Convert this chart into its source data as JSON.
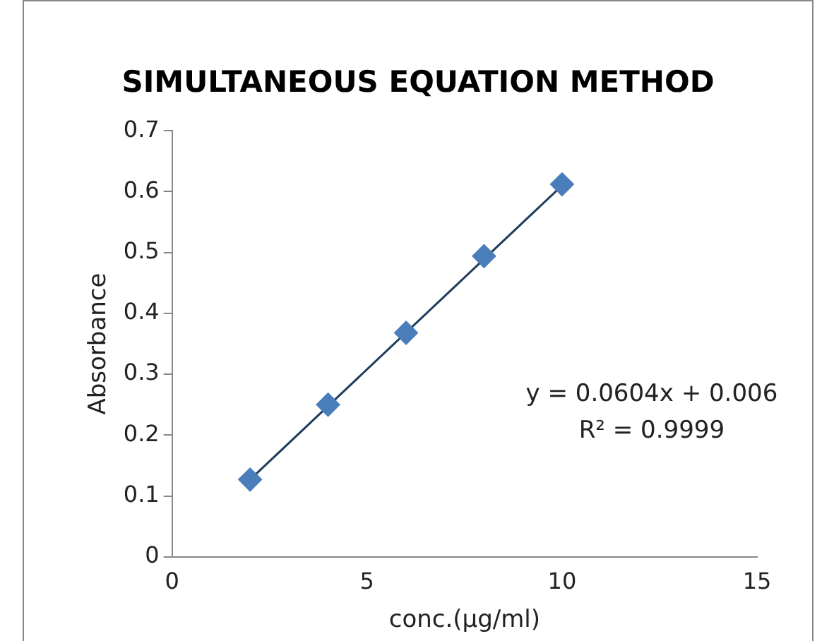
{
  "chart_data": {
    "type": "scatter",
    "title": "SIMULTANEOUS EQUATION METHOD",
    "xlabel": "conc.(µg/ml)",
    "ylabel": "Absorbance",
    "x": [
      2,
      4,
      6,
      8,
      10
    ],
    "series": [
      {
        "color": "#4a7ebb",
        "values": [
          0.127,
          0.25,
          0.368,
          0.494,
          0.612
        ],
        "marker": "diamond"
      },
      {
        "type": "line",
        "color": "#1f3d5c",
        "x": [
          2,
          10
        ],
        "values": [
          0.127,
          0.61
        ],
        "marker": "none"
      }
    ],
    "xlim": [
      0,
      15
    ],
    "xticks": [
      0,
      5,
      10,
      15
    ],
    "ylim": [
      0,
      0.7
    ],
    "yticks": [
      0,
      0.1,
      0.2,
      0.3,
      0.4,
      0.5,
      0.6,
      0.7
    ],
    "annotations": [
      "y = 0.0604x + 0.006",
      "R² = 0.9999"
    ],
    "grid": false,
    "legend": false
  }
}
